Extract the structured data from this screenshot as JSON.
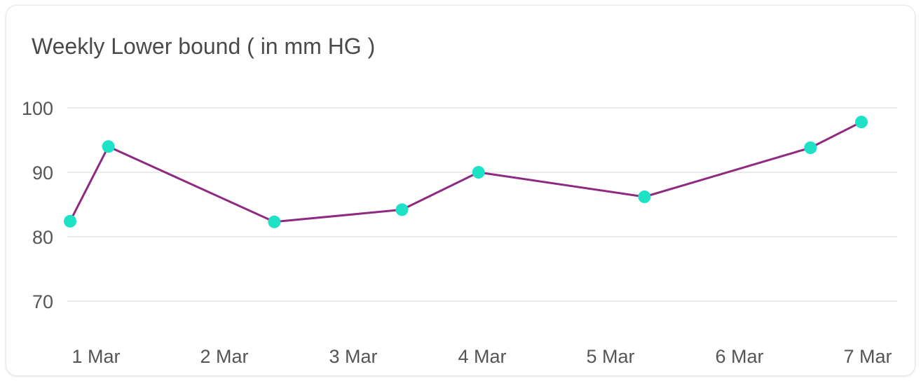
{
  "chart_data": {
    "type": "line",
    "title": "Weekly Lower bound ( in mm HG )",
    "xlabel": "",
    "ylabel": "",
    "x_tick_labels": [
      "1 Mar",
      "2 Mar",
      "3 Mar",
      "4 Mar",
      "5 Mar",
      "6 Mar",
      "7 Mar"
    ],
    "xlim": [
      1.0,
      7.2
    ],
    "y_ticks": [
      70,
      80,
      90,
      100
    ],
    "ylim": [
      66,
      104
    ],
    "grid": true,
    "colors": {
      "line": "#8e2a82",
      "marker": "#1de2c6"
    },
    "series": [
      {
        "name": "Lower bound",
        "points": [
          {
            "x": 1.0,
            "y": 82.4
          },
          {
            "x": 1.3,
            "y": 94.0
          },
          {
            "x": 2.6,
            "y": 82.3
          },
          {
            "x": 3.6,
            "y": 84.2
          },
          {
            "x": 4.2,
            "y": 90.0
          },
          {
            "x": 5.5,
            "y": 86.2
          },
          {
            "x": 6.8,
            "y": 93.8
          },
          {
            "x": 7.2,
            "y": 97.8
          }
        ]
      }
    ]
  }
}
